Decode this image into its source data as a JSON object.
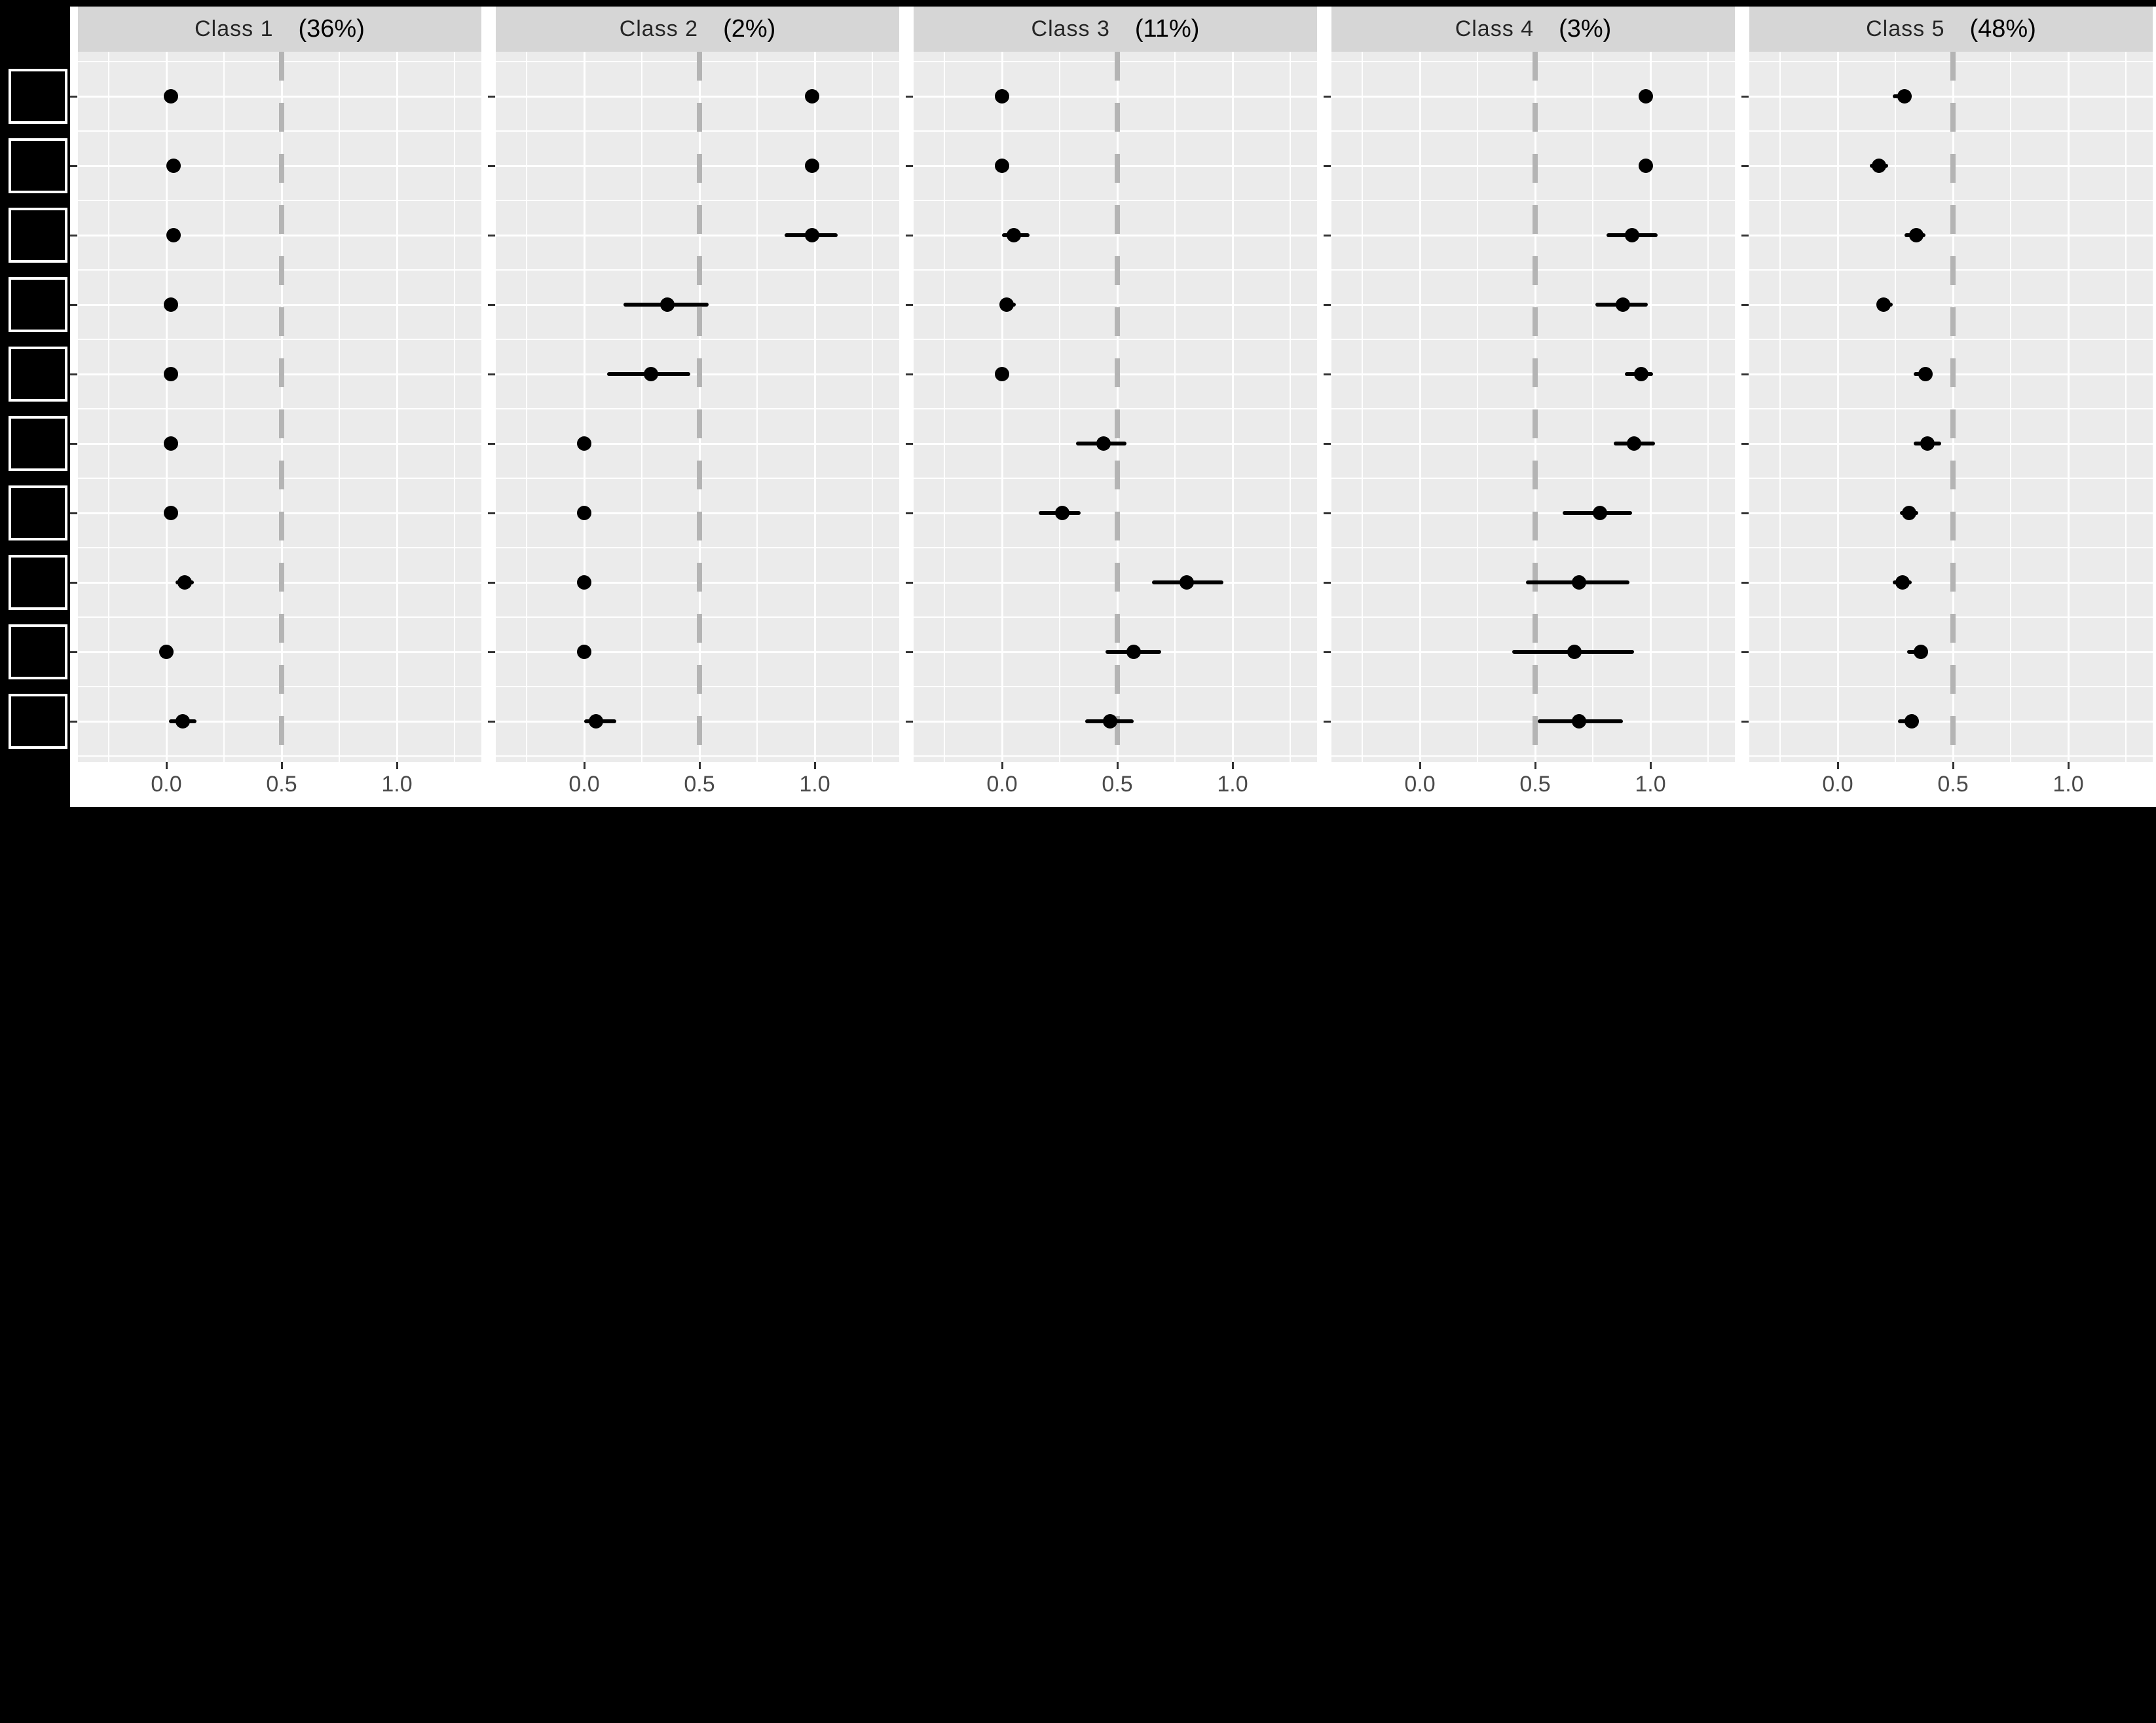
{
  "figure": {
    "background": "#000000",
    "sheet_background": "#ffffff",
    "panel_background": "#ebebeb",
    "strip_background": "#d6d6d6",
    "gridline_color": "#ffffff",
    "point_color": "#000000",
    "reference_line_color": "#b4b4b4",
    "axis_label_color": "#4a4a4a",
    "row_labels_redacted": true
  },
  "chart_data": {
    "type": "scatter",
    "subtype": "horizontal-pointrange-dot-whisker",
    "title": "",
    "xlabel": "",
    "ylabel": "",
    "grid": true,
    "legend": "none",
    "rows": 10,
    "row_labels_redacted": true,
    "x_ticks": [
      "0.0",
      "0.5",
      "1.0"
    ],
    "x_tick_values": [
      0.0,
      0.5,
      1.0
    ],
    "xlim": [
      -0.38,
      1.37
    ],
    "reference_line": 0.5,
    "facets": [
      {
        "label": "Class 1",
        "pct": "(36%)",
        "estimates": [
          0.02,
          0.03,
          0.03,
          0.02,
          0.02,
          0.02,
          0.02,
          0.08,
          0.0,
          0.07
        ],
        "ci_low": [
          0.02,
          0.03,
          0.03,
          0.02,
          0.02,
          0.02,
          0.02,
          0.04,
          0.0,
          0.01
        ],
        "ci_high": [
          0.02,
          0.03,
          0.03,
          0.02,
          0.02,
          0.02,
          0.02,
          0.12,
          0.0,
          0.13
        ]
      },
      {
        "label": "Class 2",
        "pct": "(2%)",
        "estimates": [
          0.99,
          0.99,
          0.99,
          0.36,
          0.29,
          0.0,
          0.0,
          0.0,
          0.0,
          0.05
        ],
        "ci_low": [
          0.99,
          0.99,
          0.87,
          0.17,
          0.1,
          0.0,
          0.0,
          0.0,
          0.0,
          0.0
        ],
        "ci_high": [
          0.99,
          0.99,
          1.1,
          0.54,
          0.46,
          0.0,
          0.0,
          0.0,
          0.0,
          0.14
        ]
      },
      {
        "label": "Class 3",
        "pct": "(11%)",
        "estimates": [
          0.0,
          0.0,
          0.05,
          0.02,
          0.0,
          0.44,
          0.26,
          0.8,
          0.57,
          0.47
        ],
        "ci_low": [
          0.0,
          0.0,
          0.0,
          0.0,
          0.0,
          0.32,
          0.16,
          0.65,
          0.45,
          0.36
        ],
        "ci_high": [
          0.0,
          0.0,
          0.12,
          0.06,
          0.0,
          0.54,
          0.34,
          0.96,
          0.69,
          0.57
        ]
      },
      {
        "label": "Class 4",
        "pct": "(3%)",
        "estimates": [
          0.98,
          0.98,
          0.92,
          0.88,
          0.96,
          0.93,
          0.78,
          0.69,
          0.67,
          0.69
        ],
        "ci_low": [
          0.98,
          0.98,
          0.81,
          0.76,
          0.89,
          0.84,
          0.62,
          0.46,
          0.4,
          0.51
        ],
        "ci_high": [
          0.98,
          0.98,
          1.03,
          0.99,
          1.01,
          1.02,
          0.92,
          0.91,
          0.93,
          0.88
        ]
      },
      {
        "label": "Class 5",
        "pct": "(48%)",
        "estimates": [
          0.29,
          0.18,
          0.34,
          0.2,
          0.38,
          0.39,
          0.31,
          0.28,
          0.36,
          0.32
        ],
        "ci_low": [
          0.24,
          0.14,
          0.29,
          0.17,
          0.33,
          0.33,
          0.27,
          0.24,
          0.3,
          0.26
        ],
        "ci_high": [
          0.32,
          0.22,
          0.38,
          0.24,
          0.41,
          0.45,
          0.35,
          0.32,
          0.39,
          0.35
        ]
      }
    ]
  }
}
